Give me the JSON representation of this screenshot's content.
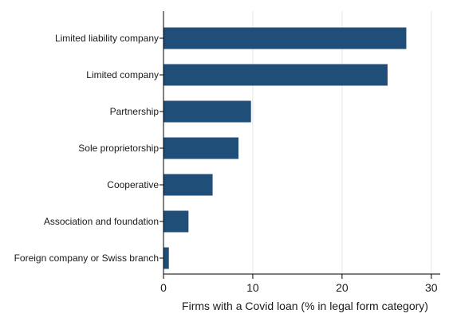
{
  "chart_data": {
    "type": "bar",
    "orientation": "horizontal",
    "categories": [
      "Limited liability company",
      "Limited company",
      "Partnership",
      "Sole proprietorship",
      "Cooperative",
      "Association and foundation",
      "Foreign company or Swiss branch"
    ],
    "values": [
      27.2,
      25.1,
      9.8,
      8.4,
      5.5,
      2.8,
      0.6
    ],
    "title": "",
    "xlabel": "Firms with a Covid loan (% in legal form category)",
    "ylabel": "",
    "xlim": [
      0,
      31
    ],
    "xticks": [
      0,
      10,
      20,
      30
    ],
    "grid": true,
    "bar_color": "#1f4e79"
  }
}
